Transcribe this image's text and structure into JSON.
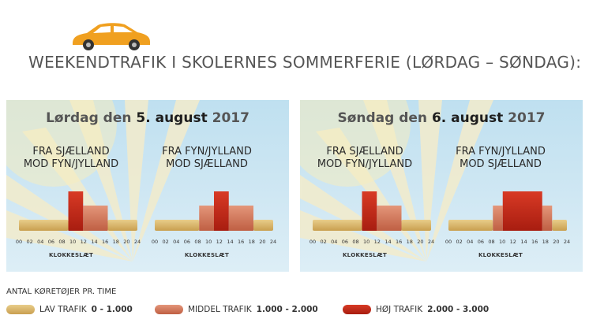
{
  "headline": "WEEKENDTRAFIK I SKOLERNES SOMMERFERIE (LØRDAG – SØNDAG):",
  "colors": {
    "low": "#d9b56a",
    "mid": "#d37a5c",
    "high": "#c42a1a",
    "car": "#f0a020"
  },
  "chart_data": [
    {
      "type": "bar",
      "title_prefix": "Lørdag den ",
      "title_date": "5. august",
      "title_year": " 2017",
      "xlabel": "KLOKKESLÆT",
      "tick_labels": [
        "00",
        "02",
        "04",
        "06",
        "08",
        "10",
        "12",
        "14",
        "16",
        "18",
        "20",
        "24"
      ],
      "groups": [
        {
          "label_line1": "FRA SJÆLLAND",
          "label_line2": "MOD FYN/JYLLAND",
          "segments": [
            {
              "start": 0,
              "end": 10,
              "level": "low"
            },
            {
              "start": 10,
              "end": 13,
              "level": "high"
            },
            {
              "start": 13,
              "end": 18,
              "level": "mid"
            },
            {
              "start": 18,
              "end": 24,
              "level": "low"
            }
          ]
        },
        {
          "label_line1": "FRA FYN/JYLLAND",
          "label_line2": "MOD SJÆLLAND",
          "segments": [
            {
              "start": 0,
              "end": 9,
              "level": "low"
            },
            {
              "start": 9,
              "end": 12,
              "level": "mid"
            },
            {
              "start": 12,
              "end": 15,
              "level": "high"
            },
            {
              "start": 15,
              "end": 20,
              "level": "mid"
            },
            {
              "start": 20,
              "end": 24,
              "level": "low"
            }
          ]
        }
      ]
    },
    {
      "type": "bar",
      "title_prefix": "Søndag den ",
      "title_date": "6. august",
      "title_year": " 2017",
      "xlabel": "KLOKKESLÆT",
      "tick_labels": [
        "00",
        "02",
        "04",
        "06",
        "08",
        "10",
        "12",
        "14",
        "16",
        "18",
        "20",
        "24"
      ],
      "groups": [
        {
          "label_line1": "FRA SJÆLLAND",
          "label_line2": "MOD FYN/JYLLAND",
          "segments": [
            {
              "start": 0,
              "end": 10,
              "level": "low"
            },
            {
              "start": 10,
              "end": 13,
              "level": "high"
            },
            {
              "start": 13,
              "end": 18,
              "level": "mid"
            },
            {
              "start": 18,
              "end": 24,
              "level": "low"
            }
          ]
        },
        {
          "label_line1": "FRA FYN/JYLLAND",
          "label_line2": "MOD SJÆLLAND",
          "segments": [
            {
              "start": 0,
              "end": 9,
              "level": "low"
            },
            {
              "start": 9,
              "end": 11,
              "level": "mid"
            },
            {
              "start": 11,
              "end": 19,
              "level": "high"
            },
            {
              "start": 19,
              "end": 21,
              "level": "mid"
            },
            {
              "start": 21,
              "end": 24,
              "level": "low"
            }
          ]
        }
      ]
    }
  ],
  "legend": {
    "title": "ANTAL KØRETØJER PR. TIME",
    "items": [
      {
        "level": "low",
        "label": "LAV TRAFIK",
        "range": "0 - 1.000"
      },
      {
        "level": "mid",
        "label": "MIDDEL TRAFIK",
        "range": "1.000 - 2.000"
      },
      {
        "level": "high",
        "label": "HØJ TRAFIK",
        "range": "2.000 - 3.000"
      }
    ]
  }
}
